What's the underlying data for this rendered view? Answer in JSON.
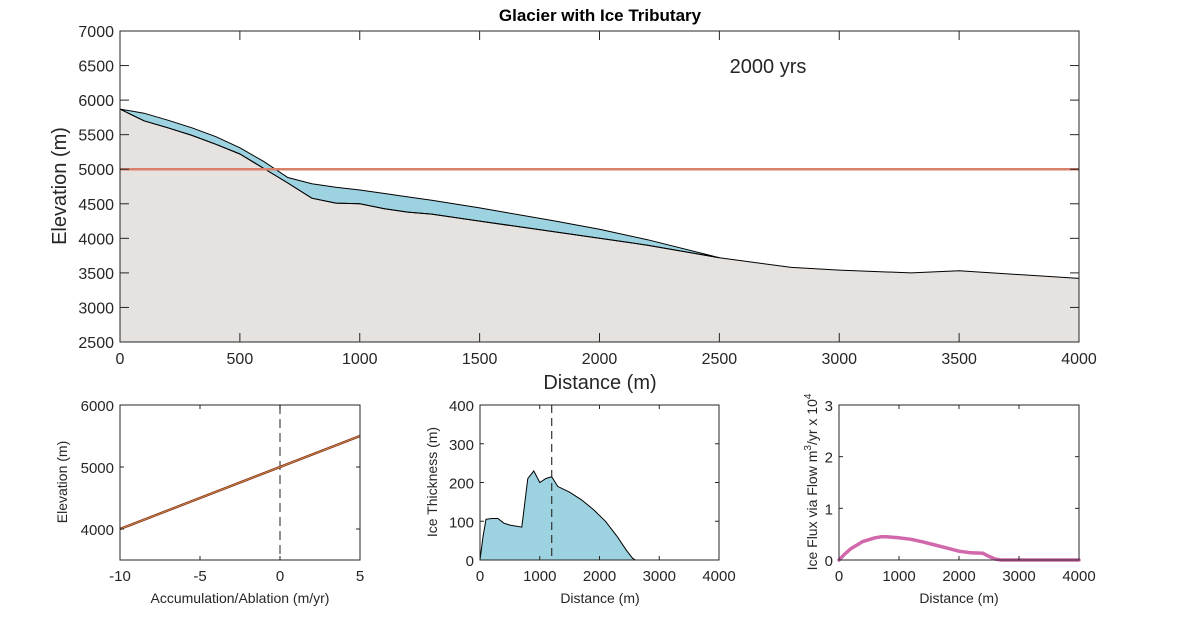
{
  "colors": {
    "bed_fill": "#e6e2df",
    "ice_fill": "#9dd3e0",
    "ela_line": "#d9806a",
    "mb_line": "#8b2c1c",
    "mb_overlay": "#c9a04a",
    "flux_line": "#d168ab",
    "outline": "#000000",
    "dashed": "#555555"
  },
  "chart_data": [
    {
      "id": "profile",
      "type": "area",
      "title": "Glacier with Ice Tributary",
      "annotation": "2000 yrs",
      "xlabel": "Distance (m)",
      "ylabel": "Elevation (m)",
      "xlim": [
        0,
        4000
      ],
      "ylim": [
        2500,
        7000
      ],
      "xticks": [
        0,
        500,
        1000,
        1500,
        2000,
        2500,
        3000,
        3500,
        4000
      ],
      "yticks": [
        2500,
        3000,
        3500,
        4000,
        4500,
        5000,
        5500,
        6000,
        6500,
        7000
      ],
      "grid": false,
      "series": [
        {
          "role": "bed",
          "x": [
            0,
            100,
            200,
            300,
            400,
            500,
            600,
            700,
            800,
            900,
            1000,
            1100,
            1200,
            1300,
            1500,
            1800,
            2000,
            2200,
            2500,
            2800,
            3000,
            3300,
            3500,
            4000
          ],
          "y": [
            5870,
            5700,
            5600,
            5490,
            5360,
            5220,
            5010,
            4800,
            4580,
            4510,
            4500,
            4430,
            4380,
            4350,
            4250,
            4100,
            4000,
            3900,
            3720,
            3580,
            3540,
            3500,
            3530,
            3420
          ]
        },
        {
          "role": "ice_surface",
          "x": [
            0,
            100,
            200,
            300,
            400,
            500,
            600,
            700,
            800,
            900,
            1000,
            1100,
            1200,
            1300,
            1500,
            1800,
            2000,
            2200,
            2500
          ],
          "y": [
            5870,
            5810,
            5710,
            5600,
            5470,
            5310,
            5110,
            4880,
            4790,
            4740,
            4700,
            4650,
            4600,
            4550,
            4440,
            4260,
            4130,
            3980,
            3720
          ]
        },
        {
          "role": "ela",
          "x": [
            0,
            4000
          ],
          "y": [
            5000,
            5000
          ]
        }
      ]
    },
    {
      "id": "mass-balance",
      "type": "line",
      "xlabel": "Accumulation/Ablation (m/yr)",
      "ylabel": "Elevation (m)",
      "xlim": [
        -10,
        5
      ],
      "ylim": [
        3500,
        6000
      ],
      "xticks": [
        -10,
        -5,
        0,
        5
      ],
      "yticks": [
        4000,
        5000,
        6000
      ],
      "vline_x": 0,
      "series": [
        {
          "x": [
            -10,
            5
          ],
          "y": [
            4000,
            5500
          ]
        }
      ]
    },
    {
      "id": "thickness",
      "type": "area",
      "xlabel": "Distance (m)",
      "ylabel": "Ice Thickness (m)",
      "xlim": [
        0,
        4000
      ],
      "ylim": [
        0,
        400
      ],
      "xticks": [
        0,
        1000,
        2000,
        3000,
        4000
      ],
      "yticks": [
        0,
        100,
        200,
        300,
        400
      ],
      "vline_x": 1200,
      "series": [
        {
          "x": [
            0,
            50,
            100,
            200,
            300,
            400,
            500,
            700,
            800,
            900,
            1000,
            1100,
            1200,
            1300,
            1500,
            1700,
            1900,
            2100,
            2300,
            2450,
            2550,
            2600,
            3000,
            4000
          ],
          "y": [
            0,
            60,
            105,
            107,
            107,
            95,
            90,
            85,
            210,
            230,
            200,
            210,
            215,
            190,
            175,
            155,
            130,
            100,
            60,
            25,
            5,
            0,
            0,
            0
          ]
        }
      ]
    },
    {
      "id": "flux",
      "type": "line",
      "xlabel": "Distance (m)",
      "ylabel": "Ice Flux via Flow m",
      "ylabel_sup1": "3",
      "ylabel_mid": "/yr x 10",
      "ylabel_sup2": "4",
      "xlim": [
        0,
        4000
      ],
      "ylim": [
        0,
        3
      ],
      "xticks": [
        0,
        1000,
        2000,
        3000,
        4000
      ],
      "yticks": [
        0,
        1,
        2,
        3
      ],
      "series": [
        {
          "x": [
            0,
            100,
            200,
            400,
            600,
            700,
            800,
            1000,
            1200,
            1400,
            1600,
            1800,
            2000,
            2200,
            2400,
            2500,
            2600,
            2700,
            3000,
            4000
          ],
          "y": [
            0,
            0.12,
            0.22,
            0.36,
            0.43,
            0.45,
            0.45,
            0.43,
            0.4,
            0.35,
            0.29,
            0.23,
            0.17,
            0.14,
            0.13,
            0.07,
            0.02,
            0,
            0,
            0
          ]
        }
      ]
    }
  ]
}
